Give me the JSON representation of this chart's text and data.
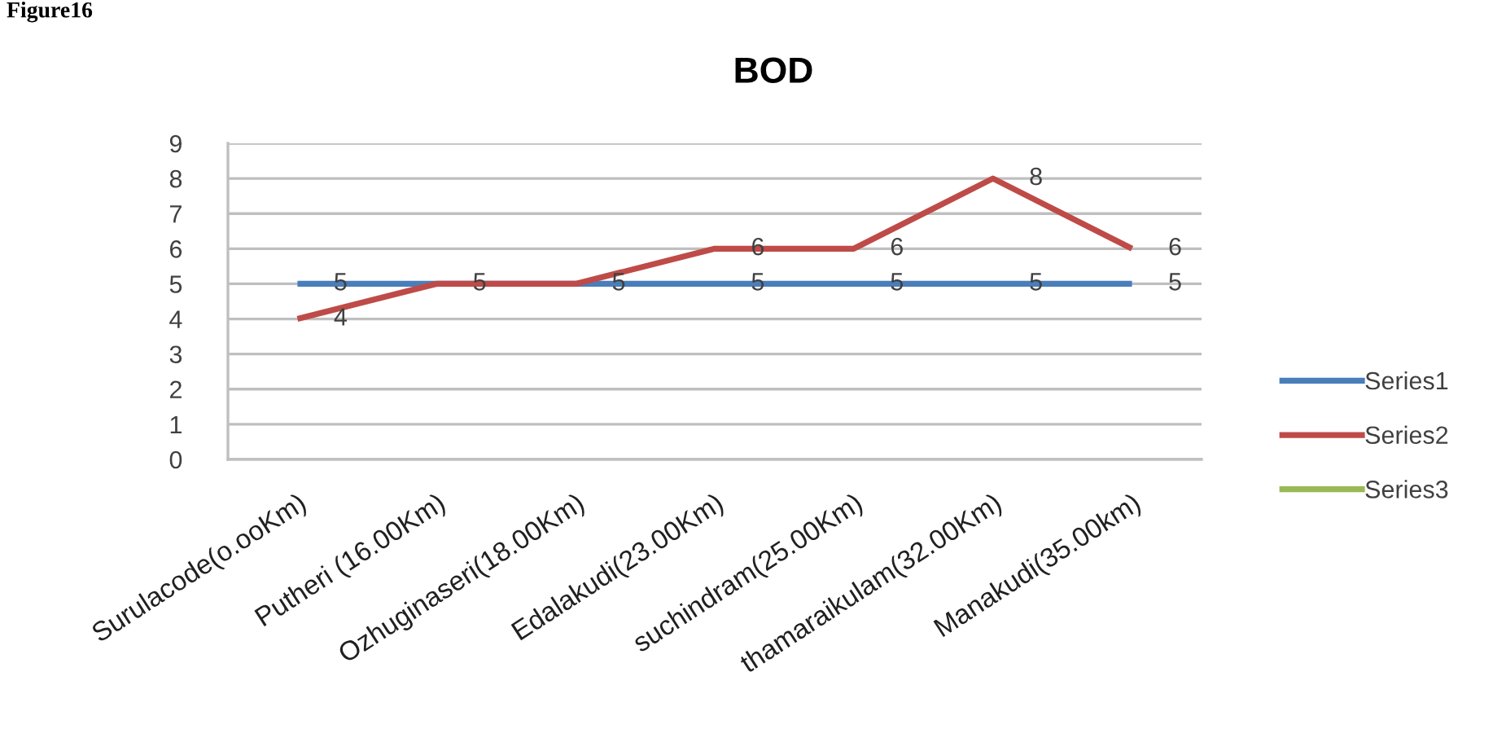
{
  "chart_data": {
    "type": "line",
    "title": "BOD",
    "annotations": [
      "Figure16"
    ],
    "categories": [
      "Surulacode(o.ooKm)",
      "Putheri (16.00Km)",
      "Ozhuginaseri(18.00Km)",
      "Edalakudi(23.00Km)",
      "suchindram(25.00Km)",
      "thamaraikulam(32.00Km)",
      "Manakudi(35.00km)"
    ],
    "series": [
      {
        "name": "Series1",
        "color": "#4a7ebb",
        "values": [
          5,
          5,
          5,
          5,
          5,
          5,
          5
        ],
        "value_labels": [
          "5",
          "5",
          "5",
          "5",
          "5",
          "5",
          "5"
        ]
      },
      {
        "name": "Series2",
        "color": "#be4b48",
        "values": [
          4,
          5,
          5,
          6,
          6,
          8,
          6
        ],
        "value_labels": [
          "4",
          null,
          null,
          "6",
          "6",
          "8",
          "6"
        ]
      },
      {
        "name": "Series3",
        "color": "#98b954",
        "values": [
          null,
          null,
          null,
          null,
          null,
          null,
          null
        ]
      }
    ],
    "ylim": [
      0,
      9
    ],
    "yticks": [
      0,
      1,
      2,
      3,
      4,
      5,
      6,
      7,
      8,
      9
    ],
    "grid": "y",
    "legend": "right"
  }
}
